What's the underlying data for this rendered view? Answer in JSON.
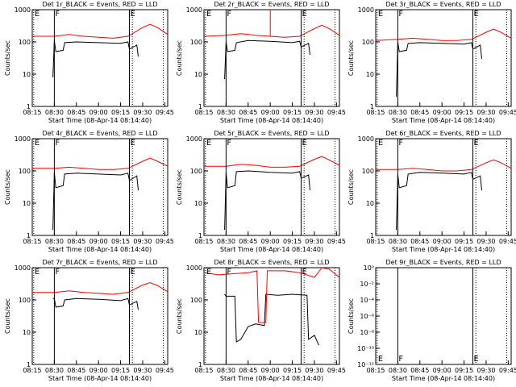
{
  "chart_data": [
    {
      "type": "line",
      "title": "Det 1r_BLACK = Events, RED = LLD",
      "x_label": "Start Time (08-Apr-14 08:14:40)",
      "y_label": "Counts/sec",
      "log_y": true,
      "xlim": [
        "08:15",
        "09:47"
      ],
      "xticks": [
        "08:15",
        "08:30",
        "08:45",
        "09:00",
        "09:15",
        "09:30",
        "09:45"
      ],
      "ylim": [
        1,
        1000
      ],
      "yticks": [
        1,
        10,
        100,
        1000
      ],
      "markers": [
        {
          "x": "08:16",
          "label": "E",
          "style": "dotted"
        },
        {
          "x": "08:30",
          "label": "F",
          "style": "solid"
        },
        {
          "x": "09:21",
          "label": "E",
          "style": "solid"
        },
        {
          "x": "09:23",
          "style": "dotted"
        },
        {
          "x": "09:44",
          "style": "dotted"
        }
      ],
      "marker_label_position": "top",
      "series": [
        {
          "name": "BLACK",
          "color": "#000000",
          "x": [
            "08:29",
            "08:30",
            "08:31",
            "08:36",
            "08:37",
            "08:45",
            "09:00",
            "09:15",
            "09:20",
            "09:21",
            "09:26",
            "09:27"
          ],
          "values": [
            8,
            110,
            50,
            55,
            95,
            100,
            95,
            90,
            100,
            60,
            80,
            35
          ]
        },
        {
          "name": "RED",
          "color": "#ff0000",
          "x": [
            "08:15",
            "08:30",
            "08:40",
            "08:50",
            "09:00",
            "09:10",
            "09:20",
            "09:30",
            "09:35",
            "09:40",
            "09:47"
          ],
          "values": [
            150,
            150,
            170,
            150,
            140,
            130,
            150,
            280,
            350,
            280,
            170
          ]
        }
      ]
    },
    {
      "type": "line",
      "title": "Det 2r_BLACK = Events, RED = LLD",
      "x_label": "Start Time (08-Apr-14 08:14:40)",
      "y_label": "Counts/sec",
      "log_y": true,
      "xlim": [
        "08:15",
        "09:47"
      ],
      "xticks": [
        "08:15",
        "08:30",
        "08:45",
        "09:00",
        "09:15",
        "09:30",
        "09:45"
      ],
      "ylim": [
        1,
        1000
      ],
      "yticks": [
        1,
        10,
        100,
        1000
      ],
      "markers": [
        {
          "x": "08:16",
          "label": "E",
          "style": "dotted"
        },
        {
          "x": "08:30",
          "label": "F",
          "style": "solid"
        },
        {
          "x": "09:21",
          "label": "E",
          "style": "solid"
        },
        {
          "x": "09:23",
          "style": "dotted"
        },
        {
          "x": "09:44",
          "style": "dotted"
        }
      ],
      "marker_label_position": "top",
      "series": [
        {
          "name": "BLACK",
          "color": "#000000",
          "x": [
            "08:29",
            "08:30",
            "08:31",
            "08:36",
            "08:37",
            "08:45",
            "09:00",
            "09:15",
            "09:20",
            "09:21",
            "09:26",
            "09:27"
          ],
          "values": [
            7,
            100,
            50,
            55,
            95,
            110,
            105,
            95,
            105,
            70,
            90,
            40
          ]
        },
        {
          "name": "RED",
          "color": "#ff0000",
          "x": [
            "08:15",
            "08:30",
            "08:40",
            "08:50",
            "09:00",
            "09:00",
            "09:00",
            "09:10",
            "09:20",
            "09:30",
            "09:35",
            "09:40",
            "09:47"
          ],
          "values": [
            150,
            160,
            180,
            160,
            150,
            1000,
            150,
            140,
            150,
            260,
            330,
            260,
            160
          ]
        }
      ]
    },
    {
      "type": "line",
      "title": "Det 3r_BLACK = Events, RED = LLD",
      "x_label": "Start Time (08-Apr-14 08:14:40)",
      "y_label": "Counts/sec",
      "log_y": true,
      "xlim": [
        "08:15",
        "09:47"
      ],
      "xticks": [
        "08:15",
        "08:30",
        "08:45",
        "09:00",
        "09:15",
        "09:30",
        "09:45"
      ],
      "ylim": [
        1,
        1000
      ],
      "yticks": [
        1,
        10,
        100,
        1000
      ],
      "markers": [
        {
          "x": "08:16",
          "label": "E",
          "style": "dotted"
        },
        {
          "x": "08:30",
          "label": "F",
          "style": "solid"
        },
        {
          "x": "09:21",
          "label": "E",
          "style": "solid"
        },
        {
          "x": "09:23",
          "style": "dotted"
        },
        {
          "x": "09:44",
          "style": "dotted"
        }
      ],
      "marker_label_position": "top",
      "series": [
        {
          "name": "BLACK",
          "color": "#000000",
          "x": [
            "08:29",
            "08:30",
            "08:31",
            "08:36",
            "08:37",
            "08:45",
            "09:00",
            "09:15",
            "09:20",
            "09:21",
            "09:26",
            "09:27"
          ],
          "values": [
            2,
            100,
            50,
            55,
            90,
            95,
            90,
            85,
            95,
            60,
            80,
            30
          ]
        },
        {
          "name": "RED",
          "color": "#ff0000",
          "x": [
            "08:15",
            "08:30",
            "08:40",
            "08:50",
            "09:00",
            "09:10",
            "09:20",
            "09:30",
            "09:35",
            "09:40",
            "09:47"
          ],
          "values": [
            110,
            120,
            130,
            120,
            110,
            110,
            120,
            200,
            250,
            200,
            130
          ]
        }
      ]
    },
    {
      "type": "line",
      "title": "Det 4r_BLACK = Events, RED = LLD",
      "x_label": "Start Time (08-Apr-14 08:14:40)",
      "y_label": "Counts/sec",
      "log_y": true,
      "xlim": [
        "08:15",
        "09:47"
      ],
      "xticks": [
        "08:15",
        "08:30",
        "08:45",
        "09:00",
        "09:15",
        "09:30",
        "09:45"
      ],
      "ylim": [
        1,
        1000
      ],
      "yticks": [
        1,
        10,
        100,
        1000
      ],
      "markers": [
        {
          "x": "08:16",
          "label": "E",
          "style": "dotted"
        },
        {
          "x": "08:30",
          "label": "F",
          "style": "solid"
        },
        {
          "x": "09:21",
          "label": "E",
          "style": "solid"
        },
        {
          "x": "09:23",
          "style": "dotted"
        },
        {
          "x": "09:44",
          "style": "dotted"
        }
      ],
      "marker_label_position": "top",
      "series": [
        {
          "name": "BLACK",
          "color": "#000000",
          "x": [
            "08:29",
            "08:30",
            "08:31",
            "08:36",
            "08:37",
            "08:45",
            "09:00",
            "09:15",
            "09:20",
            "09:21",
            "09:26",
            "09:27"
          ],
          "values": [
            1.5,
            90,
            30,
            35,
            80,
            85,
            80,
            75,
            85,
            50,
            70,
            25
          ]
        },
        {
          "name": "RED",
          "color": "#ff0000",
          "x": [
            "08:15",
            "08:30",
            "08:40",
            "08:50",
            "09:00",
            "09:10",
            "09:20",
            "09:30",
            "09:35",
            "09:40",
            "09:47"
          ],
          "values": [
            120,
            120,
            130,
            120,
            110,
            110,
            120,
            200,
            250,
            200,
            140
          ]
        }
      ]
    },
    {
      "type": "line",
      "title": "Det 5r_BLACK = Events, RED = LLD",
      "x_label": "Start Time (08-Apr-14 08:14:40)",
      "y_label": "Counts/sec",
      "log_y": true,
      "xlim": [
        "08:15",
        "09:47"
      ],
      "xticks": [
        "08:15",
        "08:30",
        "08:45",
        "09:00",
        "09:15",
        "09:30",
        "09:45"
      ],
      "ylim": [
        1,
        1000
      ],
      "yticks": [
        1,
        10,
        100,
        1000
      ],
      "markers": [
        {
          "x": "08:16",
          "label": "E",
          "style": "dotted"
        },
        {
          "x": "08:30",
          "label": "F",
          "style": "solid"
        },
        {
          "x": "09:21",
          "label": "E",
          "style": "solid"
        },
        {
          "x": "09:23",
          "style": "dotted"
        },
        {
          "x": "09:44",
          "style": "dotted"
        }
      ],
      "marker_label_position": "top",
      "series": [
        {
          "name": "BLACK",
          "color": "#000000",
          "x": [
            "08:29",
            "08:30",
            "08:31",
            "08:36",
            "08:37",
            "08:45",
            "09:00",
            "09:15",
            "09:20",
            "09:21",
            "09:26",
            "09:27"
          ],
          "values": [
            1.5,
            90,
            30,
            35,
            95,
            100,
            90,
            85,
            95,
            60,
            75,
            25
          ]
        },
        {
          "name": "RED",
          "color": "#ff0000",
          "x": [
            "08:15",
            "08:30",
            "08:40",
            "08:50",
            "09:00",
            "09:10",
            "09:20",
            "09:30",
            "09:35",
            "09:40",
            "09:47"
          ],
          "values": [
            140,
            140,
            160,
            150,
            130,
            130,
            140,
            230,
            280,
            220,
            150
          ]
        }
      ]
    },
    {
      "type": "line",
      "title": "Det 6r_BLACK = Events, RED = LLD",
      "x_label": "Start Time (08-Apr-14 08:14:40)",
      "y_label": "Counts/sec",
      "log_y": true,
      "xlim": [
        "08:15",
        "09:47"
      ],
      "xticks": [
        "08:15",
        "08:30",
        "08:45",
        "09:00",
        "09:15",
        "09:30",
        "09:45"
      ],
      "ylim": [
        1,
        1000
      ],
      "yticks": [
        1,
        10,
        100,
        1000
      ],
      "markers": [
        {
          "x": "08:16",
          "label": "E",
          "style": "dotted"
        },
        {
          "x": "08:30",
          "label": "F",
          "style": "solid"
        },
        {
          "x": "09:21",
          "label": "E",
          "style": "solid"
        },
        {
          "x": "09:23",
          "style": "dotted"
        },
        {
          "x": "09:44",
          "style": "dotted"
        }
      ],
      "marker_label_position": "top",
      "series": [
        {
          "name": "BLACK",
          "color": "#000000",
          "x": [
            "08:29",
            "08:30",
            "08:31",
            "08:36",
            "08:37",
            "08:45",
            "09:00",
            "09:15",
            "09:20",
            "09:21",
            "09:26",
            "09:27"
          ],
          "values": [
            1.5,
            80,
            30,
            35,
            80,
            90,
            85,
            80,
            90,
            55,
            70,
            25
          ]
        },
        {
          "name": "RED",
          "color": "#ff0000",
          "x": [
            "08:15",
            "08:30",
            "08:40",
            "08:50",
            "09:00",
            "09:10",
            "09:20",
            "09:30",
            "09:35",
            "09:40",
            "09:47"
          ],
          "values": [
            110,
            110,
            120,
            110,
            100,
            100,
            110,
            180,
            220,
            180,
            120
          ]
        }
      ]
    },
    {
      "type": "line",
      "title": "Det 7r_BLACK = Events, RED = LLD",
      "x_label": "Start Time (08-Apr-14 08:14:40)",
      "y_label": "Counts/sec",
      "log_y": true,
      "xlim": [
        "08:15",
        "09:47"
      ],
      "xticks": [
        "08:15",
        "08:30",
        "08:45",
        "09:00",
        "09:15",
        "09:30",
        "09:45"
      ],
      "ylim": [
        1,
        1000
      ],
      "yticks": [
        1,
        10,
        100,
        1000
      ],
      "markers": [
        {
          "x": "08:16",
          "label": "E",
          "style": "dotted"
        },
        {
          "x": "08:30",
          "label": "F",
          "style": "solid"
        },
        {
          "x": "09:21",
          "label": "E",
          "style": "solid"
        },
        {
          "x": "09:23",
          "style": "dotted"
        },
        {
          "x": "09:44",
          "style": "dotted"
        }
      ],
      "marker_label_position": "top",
      "series": [
        {
          "name": "BLACK",
          "color": "#000000",
          "x": [
            "08:29",
            "08:30",
            "08:31",
            "08:36",
            "08:37",
            "08:45",
            "09:00",
            "09:15",
            "09:20",
            "09:21",
            "09:26",
            "09:27"
          ],
          "values": [
            110,
            110,
            60,
            65,
            100,
            110,
            105,
            95,
            110,
            70,
            90,
            50
          ]
        },
        {
          "name": "RED",
          "color": "#ff0000",
          "x": [
            "08:15",
            "08:30",
            "08:40",
            "08:50",
            "09:00",
            "09:10",
            "09:20",
            "09:30",
            "09:35",
            "09:40",
            "09:47"
          ],
          "values": [
            170,
            170,
            190,
            170,
            160,
            150,
            170,
            290,
            340,
            280,
            180
          ]
        }
      ]
    },
    {
      "type": "line",
      "title": "Det 8r_BLACK = Events, RED = LLD",
      "x_label": "Start Time (08-Apr-14 08:14:40)",
      "y_label": "Counts/sec",
      "log_y": true,
      "xlim": [
        "08:15",
        "09:47"
      ],
      "xticks": [
        "08:15",
        "08:30",
        "08:45",
        "09:00",
        "09:15",
        "09:30",
        "09:45"
      ],
      "ylim": [
        1,
        1000
      ],
      "yticks": [
        1,
        10,
        100,
        1000
      ],
      "markers": [
        {
          "x": "08:16",
          "label": "E",
          "style": "dotted"
        },
        {
          "x": "08:30",
          "label": "F",
          "style": "solid"
        },
        {
          "x": "09:21",
          "label": "E",
          "style": "solid"
        },
        {
          "x": "09:23",
          "style": "dotted"
        },
        {
          "x": "09:44",
          "style": "dotted"
        }
      ],
      "marker_label_position": "top",
      "series": [
        {
          "name": "BLACK",
          "color": "#000000",
          "x": [
            "08:29",
            "08:30",
            "08:36",
            "08:37",
            "08:40",
            "08:45",
            "08:50",
            "08:56",
            "08:57",
            "09:05",
            "09:15",
            "09:25",
            "09:26",
            "09:30",
            "09:33"
          ],
          "values": [
            150,
            130,
            130,
            5,
            6,
            15,
            18,
            16,
            150,
            140,
            150,
            140,
            6,
            8,
            4
          ]
        },
        {
          "name": "RED",
          "color": "#ff0000",
          "x": [
            "08:15",
            "08:25",
            "08:35",
            "08:45",
            "08:51",
            "08:52",
            "08:57",
            "08:58",
            "09:10",
            "09:20",
            "09:30",
            "09:35",
            "09:40",
            "09:47"
          ],
          "values": [
            700,
            600,
            650,
            700,
            800,
            20,
            20,
            800,
            800,
            700,
            500,
            1000,
            900,
            500
          ]
        }
      ]
    },
    {
      "type": "line",
      "title": "Det 9r_BLACK = Events, RED = LLD",
      "x_label": "Start Time (08-Apr-14 08:14:40)",
      "y_label": "Counts/sec",
      "log_y": true,
      "xlim": [
        "08:15",
        "09:47"
      ],
      "xticks": [
        "08:15",
        "08:30",
        "08:45",
        "09:00",
        "09:15",
        "09:30",
        "09:45"
      ],
      "ylim": [
        1e-12,
        1
      ],
      "yticks": [
        {
          "value": 1e-12,
          "label": "10⁻¹²"
        },
        {
          "value": 1e-10,
          "label": "10⁻¹⁰"
        },
        {
          "value": 1e-08,
          "label": "10⁻⁸"
        },
        {
          "value": 1e-06,
          "label": "10⁻⁶"
        },
        {
          "value": 0.0001,
          "label": "10⁻⁴"
        },
        {
          "value": 0.01,
          "label": "10⁻²"
        },
        {
          "value": 1,
          "label": "10⁰"
        }
      ],
      "markers": [
        {
          "x": "08:16",
          "label": "E",
          "style": "dotted"
        },
        {
          "x": "08:30",
          "label": "F",
          "style": "solid"
        },
        {
          "x": "09:21",
          "label": "E",
          "style": "solid"
        },
        {
          "x": "09:23",
          "style": "dotted"
        },
        {
          "x": "09:44",
          "style": "dotted"
        }
      ],
      "marker_label_position": "bottom",
      "series": []
    }
  ]
}
